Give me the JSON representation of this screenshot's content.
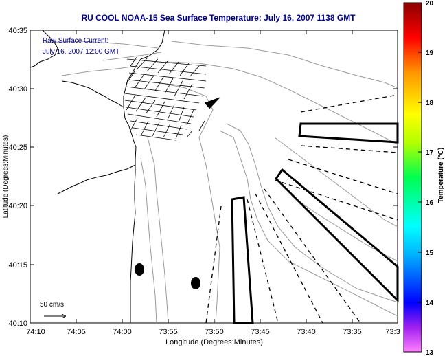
{
  "title": "RU COOL  NOAA-15  Sea Surface Temperature:  July 16, 2007 1138 GMT",
  "annotation": {
    "line1": "Raw Surface Current:",
    "line2": "July 16, 2007 12:00 GMT"
  },
  "scale_label": "50 cm/s",
  "axes": {
    "xlabel": "Longitude (Degrees:Minutes)",
    "ylabel": "Latitude (Degrees:Minutes)",
    "xticks": [
      "74:10",
      "74:05",
      "74:00",
      "73:55",
      "73:50",
      "73:45",
      "73:40",
      "73:35",
      "73:3"
    ],
    "yticks": [
      "40:35",
      "40:30",
      "40:25",
      "40:20",
      "40:15",
      "40:10"
    ]
  },
  "colorbar": {
    "label": "Temperature (°C)",
    "ticks": [
      "20",
      "19",
      "18",
      "17",
      "16",
      "15",
      "14",
      "13"
    ]
  },
  "colors": {
    "title_text": "#00008b",
    "frame": "#000000",
    "contour": "#9a9a9a"
  }
}
